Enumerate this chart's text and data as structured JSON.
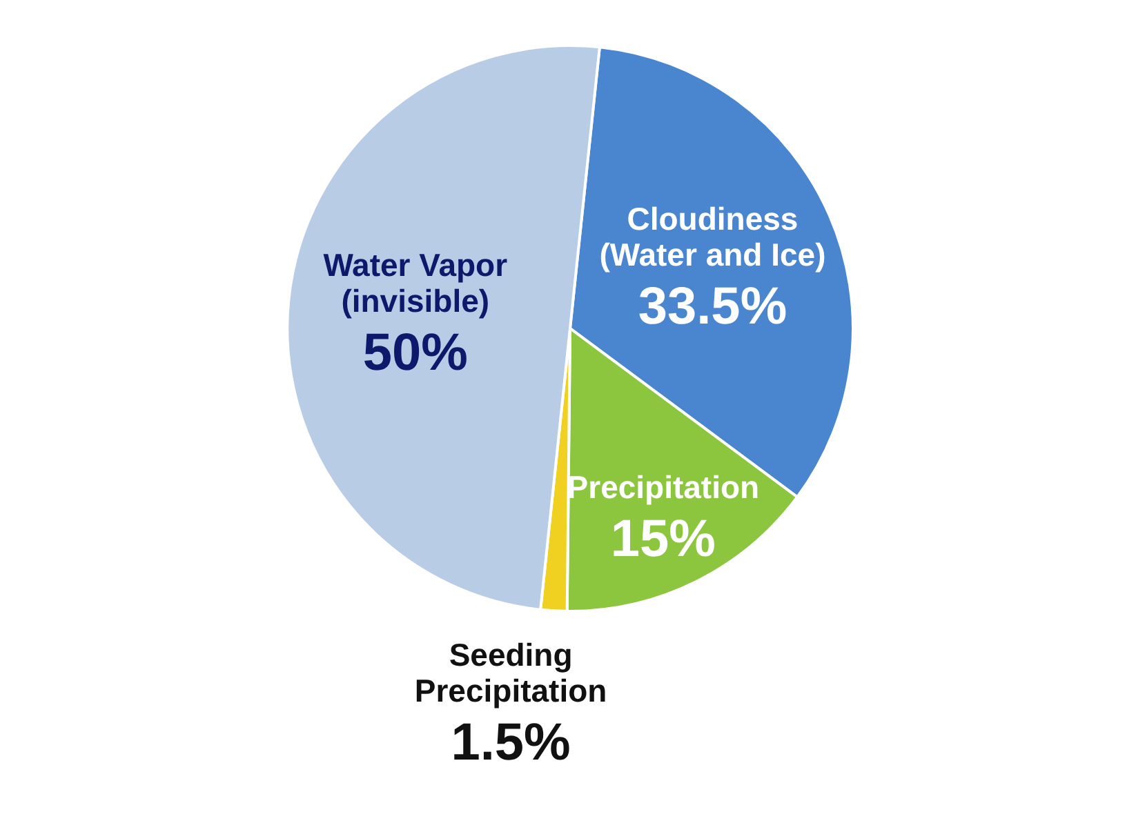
{
  "chart_data": {
    "type": "pie",
    "categories": [
      "Cloudiness (Water and Ice)",
      "Precipitation",
      "Seeding Precipitation",
      "Water Vapor (invisible)"
    ],
    "values": [
      33.5,
      15,
      1.5,
      50
    ],
    "colors": [
      "#4a86d0",
      "#8cc63e",
      "#f0d020",
      "#b8cce6"
    ],
    "value_labels": [
      "33.5%",
      "15%",
      "1.5%",
      "50%"
    ]
  }
}
